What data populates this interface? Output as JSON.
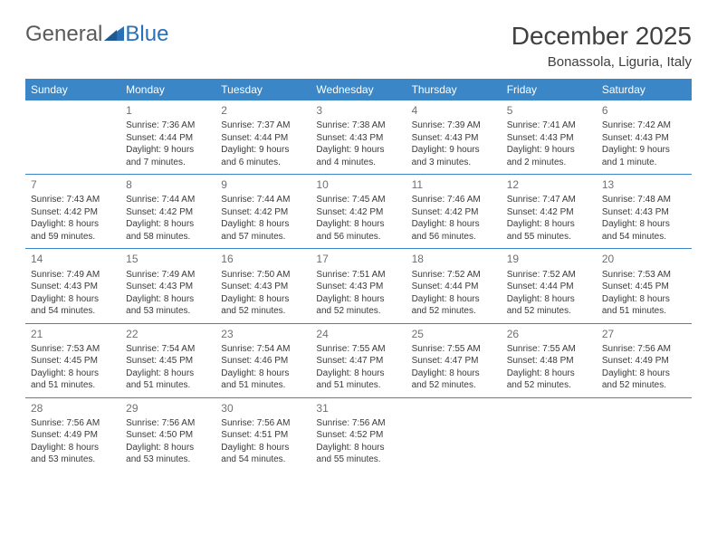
{
  "brand": {
    "general": "General",
    "blue": "Blue"
  },
  "title": "December 2025",
  "location": "Bonassola, Liguria, Italy",
  "colors": {
    "header_bg": "#3b86c6",
    "header_text": "#ffffff",
    "text": "#3a3a3a",
    "daynum": "#707070",
    "rule": "#3b86c6",
    "brand_grey": "#5a5a5a",
    "brand_blue": "#2a70b8",
    "page_bg": "#ffffff"
  },
  "day_headers": [
    "Sunday",
    "Monday",
    "Tuesday",
    "Wednesday",
    "Thursday",
    "Friday",
    "Saturday"
  ],
  "weeks": [
    [
      null,
      {
        "n": "1",
        "sr": "7:36 AM",
        "ss": "4:44 PM",
        "dl": "9 hours and 7 minutes."
      },
      {
        "n": "2",
        "sr": "7:37 AM",
        "ss": "4:44 PM",
        "dl": "9 hours and 6 minutes."
      },
      {
        "n": "3",
        "sr": "7:38 AM",
        "ss": "4:43 PM",
        "dl": "9 hours and 4 minutes."
      },
      {
        "n": "4",
        "sr": "7:39 AM",
        "ss": "4:43 PM",
        "dl": "9 hours and 3 minutes."
      },
      {
        "n": "5",
        "sr": "7:41 AM",
        "ss": "4:43 PM",
        "dl": "9 hours and 2 minutes."
      },
      {
        "n": "6",
        "sr": "7:42 AM",
        "ss": "4:43 PM",
        "dl": "9 hours and 1 minute."
      }
    ],
    [
      {
        "n": "7",
        "sr": "7:43 AM",
        "ss": "4:42 PM",
        "dl": "8 hours and 59 minutes."
      },
      {
        "n": "8",
        "sr": "7:44 AM",
        "ss": "4:42 PM",
        "dl": "8 hours and 58 minutes."
      },
      {
        "n": "9",
        "sr": "7:44 AM",
        "ss": "4:42 PM",
        "dl": "8 hours and 57 minutes."
      },
      {
        "n": "10",
        "sr": "7:45 AM",
        "ss": "4:42 PM",
        "dl": "8 hours and 56 minutes."
      },
      {
        "n": "11",
        "sr": "7:46 AM",
        "ss": "4:42 PM",
        "dl": "8 hours and 56 minutes."
      },
      {
        "n": "12",
        "sr": "7:47 AM",
        "ss": "4:42 PM",
        "dl": "8 hours and 55 minutes."
      },
      {
        "n": "13",
        "sr": "7:48 AM",
        "ss": "4:43 PM",
        "dl": "8 hours and 54 minutes."
      }
    ],
    [
      {
        "n": "14",
        "sr": "7:49 AM",
        "ss": "4:43 PM",
        "dl": "8 hours and 54 minutes."
      },
      {
        "n": "15",
        "sr": "7:49 AM",
        "ss": "4:43 PM",
        "dl": "8 hours and 53 minutes."
      },
      {
        "n": "16",
        "sr": "7:50 AM",
        "ss": "4:43 PM",
        "dl": "8 hours and 52 minutes."
      },
      {
        "n": "17",
        "sr": "7:51 AM",
        "ss": "4:43 PM",
        "dl": "8 hours and 52 minutes."
      },
      {
        "n": "18",
        "sr": "7:52 AM",
        "ss": "4:44 PM",
        "dl": "8 hours and 52 minutes."
      },
      {
        "n": "19",
        "sr": "7:52 AM",
        "ss": "4:44 PM",
        "dl": "8 hours and 52 minutes."
      },
      {
        "n": "20",
        "sr": "7:53 AM",
        "ss": "4:45 PM",
        "dl": "8 hours and 51 minutes."
      }
    ],
    [
      {
        "n": "21",
        "sr": "7:53 AM",
        "ss": "4:45 PM",
        "dl": "8 hours and 51 minutes."
      },
      {
        "n": "22",
        "sr": "7:54 AM",
        "ss": "4:45 PM",
        "dl": "8 hours and 51 minutes."
      },
      {
        "n": "23",
        "sr": "7:54 AM",
        "ss": "4:46 PM",
        "dl": "8 hours and 51 minutes."
      },
      {
        "n": "24",
        "sr": "7:55 AM",
        "ss": "4:47 PM",
        "dl": "8 hours and 51 minutes."
      },
      {
        "n": "25",
        "sr": "7:55 AM",
        "ss": "4:47 PM",
        "dl": "8 hours and 52 minutes."
      },
      {
        "n": "26",
        "sr": "7:55 AM",
        "ss": "4:48 PM",
        "dl": "8 hours and 52 minutes."
      },
      {
        "n": "27",
        "sr": "7:56 AM",
        "ss": "4:49 PM",
        "dl": "8 hours and 52 minutes."
      }
    ],
    [
      {
        "n": "28",
        "sr": "7:56 AM",
        "ss": "4:49 PM",
        "dl": "8 hours and 53 minutes."
      },
      {
        "n": "29",
        "sr": "7:56 AM",
        "ss": "4:50 PM",
        "dl": "8 hours and 53 minutes."
      },
      {
        "n": "30",
        "sr": "7:56 AM",
        "ss": "4:51 PM",
        "dl": "8 hours and 54 minutes."
      },
      {
        "n": "31",
        "sr": "7:56 AM",
        "ss": "4:52 PM",
        "dl": "8 hours and 55 minutes."
      },
      null,
      null,
      null
    ]
  ],
  "labels": {
    "sunrise": "Sunrise: ",
    "sunset": "Sunset: ",
    "daylight": "Daylight: "
  }
}
